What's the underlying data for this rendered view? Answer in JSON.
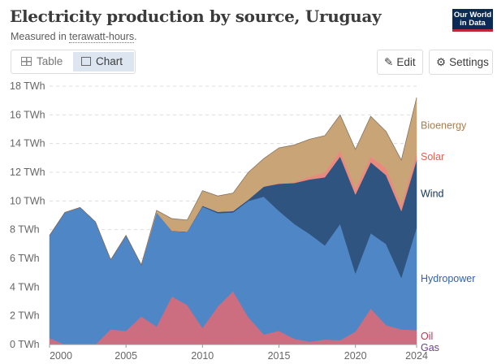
{
  "header": {
    "title": "Electricity production by source, Uruguay",
    "subtitle_prefix": "Measured in ",
    "subtitle_unit": "terawatt-hours",
    "subtitle_suffix": ".",
    "logo": "Our World in Data"
  },
  "tabs": [
    {
      "label": "Table",
      "icon": "table-icon"
    },
    {
      "label": "Chart",
      "icon": "chart-icon",
      "active": true
    }
  ],
  "buttons": {
    "edit": "Edit",
    "settings": "Settings"
  },
  "chart_data": {
    "type": "area",
    "stacked": true,
    "ylim": [
      0,
      18
    ],
    "yticks": [
      0,
      2,
      4,
      6,
      8,
      10,
      12,
      14,
      16,
      18
    ],
    "ytick_labels": [
      "0 TWh",
      "2 TWh",
      "4 TWh",
      "6 TWh",
      "8 TWh",
      "10 TWh",
      "12 TWh",
      "14 TWh",
      "16 TWh",
      "18 TWh"
    ],
    "xticks": [
      2000,
      2005,
      2010,
      2015,
      2020,
      2024
    ],
    "grid": "horizontal dashed",
    "legend": "right, inline labels",
    "x": [
      2000,
      2001,
      2002,
      2003,
      2004,
      2005,
      2006,
      2007,
      2008,
      2009,
      2010,
      2011,
      2012,
      2013,
      2014,
      2015,
      2016,
      2017,
      2018,
      2019,
      2020,
      2021,
      2022,
      2023,
      2024
    ],
    "series": [
      {
        "name": "Gas",
        "color": "#6d3e91",
        "label_color": "#6d3e91",
        "values": [
          0,
          0,
          0,
          0,
          0,
          0,
          0,
          0,
          0,
          0,
          0.03,
          0.03,
          0.03,
          0,
          0,
          0,
          0,
          0,
          0.02,
          0.03,
          0,
          0,
          0,
          0,
          0
        ]
      },
      {
        "name": "Oil",
        "color": "#cc6e80",
        "label_color": "#c4334f",
        "values": [
          0.45,
          0,
          0,
          0,
          1.05,
          0.95,
          1.95,
          1.25,
          3.35,
          2.75,
          1.12,
          2.62,
          3.67,
          1.9,
          0.7,
          0.95,
          0.4,
          0.2,
          0.33,
          0.27,
          0.9,
          2.5,
          1.35,
          1.05,
          1.0
        ]
      },
      {
        "name": "Hydropower",
        "color": "#4f86c6",
        "label_color": "#3262a8",
        "values": [
          7.15,
          9.2,
          9.55,
          8.55,
          4.85,
          6.65,
          3.6,
          7.95,
          4.55,
          5.1,
          8.45,
          6.5,
          5.5,
          8.1,
          9.6,
          8.35,
          8.0,
          7.5,
          6.55,
          8.1,
          4.05,
          5.25,
          5.65,
          3.6,
          7.15
        ]
      },
      {
        "name": "Wind",
        "color": "#2f5480",
        "label_color": "#13305c",
        "values": [
          0,
          0,
          0,
          0,
          0,
          0,
          0,
          0,
          0.02,
          0.02,
          0.07,
          0.1,
          0.1,
          0.1,
          0.7,
          1.9,
          2.85,
          3.8,
          4.75,
          4.7,
          5.5,
          4.95,
          4.8,
          4.65,
          4.7
        ]
      },
      {
        "name": "Solar",
        "color": "#ea8a7e",
        "label_color": "#e2604e",
        "values": [
          0,
          0,
          0,
          0,
          0,
          0,
          0,
          0,
          0,
          0,
          0,
          0,
          0,
          0,
          0,
          0.05,
          0.05,
          0.2,
          0.35,
          0.4,
          0.45,
          0.4,
          0.5,
          0.45,
          0.45
        ]
      },
      {
        "name": "Bioenergy",
        "color": "#c9a477",
        "label_color": "#a67e52",
        "values": [
          0,
          0,
          0,
          0,
          0,
          0,
          0,
          0.15,
          0.85,
          0.8,
          1.05,
          1.1,
          1.25,
          1.9,
          1.95,
          2.45,
          2.6,
          2.6,
          2.55,
          2.5,
          2.7,
          2.8,
          2.55,
          3.1,
          3.9
        ]
      }
    ]
  }
}
